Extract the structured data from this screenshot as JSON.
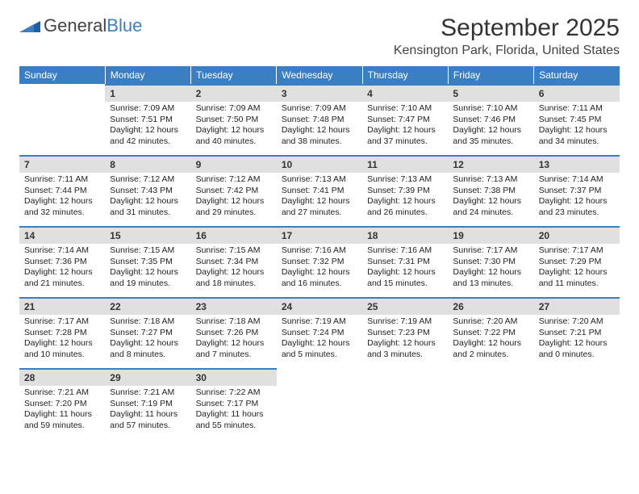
{
  "logo": {
    "text1": "General",
    "text2": "Blue"
  },
  "title": "September 2025",
  "location": "Kensington Park, Florida, United States",
  "colors": {
    "header_bg": "#3a7fc4",
    "header_fg": "#ffffff",
    "daynum_bg": "#e0e0e0",
    "daynum_border": "#3a7fc4",
    "page_bg": "#ffffff",
    "text": "#222222"
  },
  "daysOfWeek": [
    "Sunday",
    "Monday",
    "Tuesday",
    "Wednesday",
    "Thursday",
    "Friday",
    "Saturday"
  ],
  "weeks": [
    [
      null,
      {
        "n": "1",
        "sr": "7:09 AM",
        "ss": "7:51 PM",
        "dl": "12 hours and 42 minutes."
      },
      {
        "n": "2",
        "sr": "7:09 AM",
        "ss": "7:50 PM",
        "dl": "12 hours and 40 minutes."
      },
      {
        "n": "3",
        "sr": "7:09 AM",
        "ss": "7:48 PM",
        "dl": "12 hours and 38 minutes."
      },
      {
        "n": "4",
        "sr": "7:10 AM",
        "ss": "7:47 PM",
        "dl": "12 hours and 37 minutes."
      },
      {
        "n": "5",
        "sr": "7:10 AM",
        "ss": "7:46 PM",
        "dl": "12 hours and 35 minutes."
      },
      {
        "n": "6",
        "sr": "7:11 AM",
        "ss": "7:45 PM",
        "dl": "12 hours and 34 minutes."
      }
    ],
    [
      {
        "n": "7",
        "sr": "7:11 AM",
        "ss": "7:44 PM",
        "dl": "12 hours and 32 minutes."
      },
      {
        "n": "8",
        "sr": "7:12 AM",
        "ss": "7:43 PM",
        "dl": "12 hours and 31 minutes."
      },
      {
        "n": "9",
        "sr": "7:12 AM",
        "ss": "7:42 PM",
        "dl": "12 hours and 29 minutes."
      },
      {
        "n": "10",
        "sr": "7:13 AM",
        "ss": "7:41 PM",
        "dl": "12 hours and 27 minutes."
      },
      {
        "n": "11",
        "sr": "7:13 AM",
        "ss": "7:39 PM",
        "dl": "12 hours and 26 minutes."
      },
      {
        "n": "12",
        "sr": "7:13 AM",
        "ss": "7:38 PM",
        "dl": "12 hours and 24 minutes."
      },
      {
        "n": "13",
        "sr": "7:14 AM",
        "ss": "7:37 PM",
        "dl": "12 hours and 23 minutes."
      }
    ],
    [
      {
        "n": "14",
        "sr": "7:14 AM",
        "ss": "7:36 PM",
        "dl": "12 hours and 21 minutes."
      },
      {
        "n": "15",
        "sr": "7:15 AM",
        "ss": "7:35 PM",
        "dl": "12 hours and 19 minutes."
      },
      {
        "n": "16",
        "sr": "7:15 AM",
        "ss": "7:34 PM",
        "dl": "12 hours and 18 minutes."
      },
      {
        "n": "17",
        "sr": "7:16 AM",
        "ss": "7:32 PM",
        "dl": "12 hours and 16 minutes."
      },
      {
        "n": "18",
        "sr": "7:16 AM",
        "ss": "7:31 PM",
        "dl": "12 hours and 15 minutes."
      },
      {
        "n": "19",
        "sr": "7:17 AM",
        "ss": "7:30 PM",
        "dl": "12 hours and 13 minutes."
      },
      {
        "n": "20",
        "sr": "7:17 AM",
        "ss": "7:29 PM",
        "dl": "12 hours and 11 minutes."
      }
    ],
    [
      {
        "n": "21",
        "sr": "7:17 AM",
        "ss": "7:28 PM",
        "dl": "12 hours and 10 minutes."
      },
      {
        "n": "22",
        "sr": "7:18 AM",
        "ss": "7:27 PM",
        "dl": "12 hours and 8 minutes."
      },
      {
        "n": "23",
        "sr": "7:18 AM",
        "ss": "7:26 PM",
        "dl": "12 hours and 7 minutes."
      },
      {
        "n": "24",
        "sr": "7:19 AM",
        "ss": "7:24 PM",
        "dl": "12 hours and 5 minutes."
      },
      {
        "n": "25",
        "sr": "7:19 AM",
        "ss": "7:23 PM",
        "dl": "12 hours and 3 minutes."
      },
      {
        "n": "26",
        "sr": "7:20 AM",
        "ss": "7:22 PM",
        "dl": "12 hours and 2 minutes."
      },
      {
        "n": "27",
        "sr": "7:20 AM",
        "ss": "7:21 PM",
        "dl": "12 hours and 0 minutes."
      }
    ],
    [
      {
        "n": "28",
        "sr": "7:21 AM",
        "ss": "7:20 PM",
        "dl": "11 hours and 59 minutes."
      },
      {
        "n": "29",
        "sr": "7:21 AM",
        "ss": "7:19 PM",
        "dl": "11 hours and 57 minutes."
      },
      {
        "n": "30",
        "sr": "7:22 AM",
        "ss": "7:17 PM",
        "dl": "11 hours and 55 minutes."
      },
      null,
      null,
      null,
      null
    ]
  ],
  "labels": {
    "sunrise": "Sunrise:",
    "sunset": "Sunset:",
    "daylight": "Daylight:"
  }
}
